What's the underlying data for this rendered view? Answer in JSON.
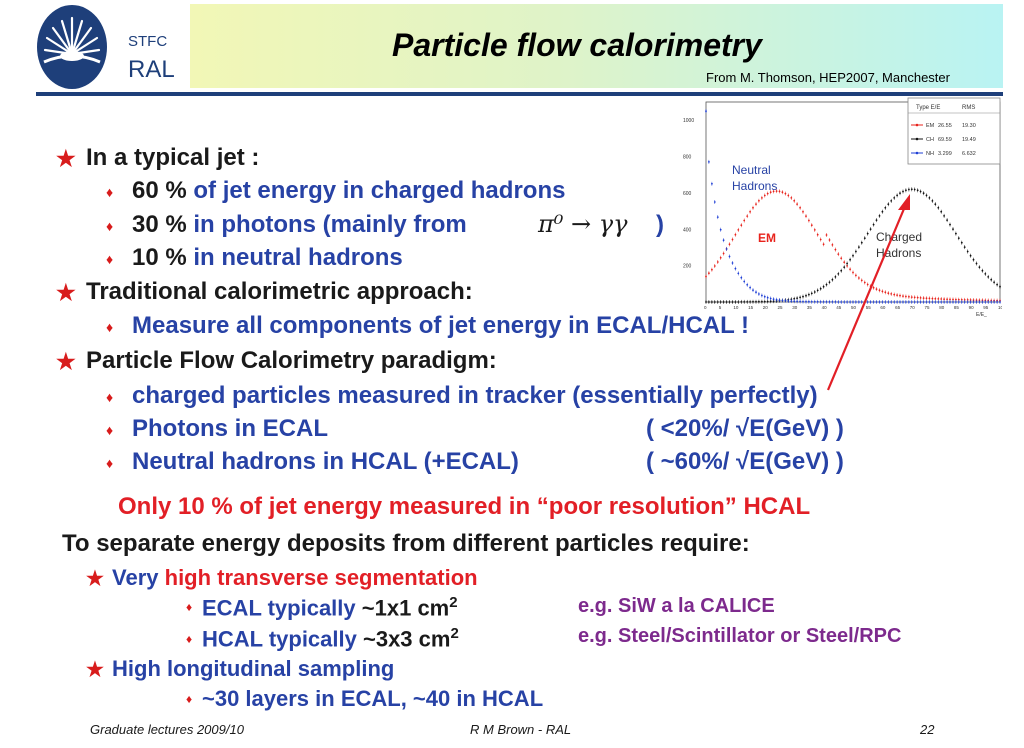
{
  "header": {
    "logo_stfc": "STFC",
    "logo_ral": "RAL",
    "title": "Particle flow calorimetry",
    "source": "From M. Thomson, HEP2007, Manchester"
  },
  "plot": {
    "legend_header_type": "Type E/E",
    "legend_header_rms": "RMS",
    "legend_rows": [
      {
        "type": "EM",
        "mean": "26.55",
        "rms": "19.30"
      },
      {
        "type": "CH",
        "mean": "69.59",
        "rms": "19.49"
      },
      {
        "type": "NH",
        "mean": "3.299",
        "rms": "6.632"
      }
    ],
    "label_neutral_1": "Neutral",
    "label_neutral_2": "Hadrons",
    "label_em": "EM",
    "label_charged_1": "Charged",
    "label_charged_2": "Hadrons",
    "yticks": [
      "1000",
      "800",
      "600",
      "400",
      "200"
    ],
    "xticks": [
      "0",
      "5",
      "10",
      "15",
      "20",
      "25",
      "30",
      "35",
      "40",
      "45",
      "50",
      "55",
      "60",
      "65",
      "70",
      "75",
      "80",
      "85",
      "90",
      "95",
      "100"
    ],
    "xlabel": "E/E_",
    "colors": {
      "em": "#e8231c",
      "ch": "#111111",
      "nh": "#1f3fd6"
    }
  },
  "body": {
    "jet_heading": "In a typical jet :",
    "jet1_pct": "60 %",
    "jet1_text": "of jet energy in charged hadrons",
    "jet2_pct": "30 %",
    "jet2_text": "in photons  (mainly from",
    "jet2_formula": "π⁰ → γγ",
    "jet2_close": ")",
    "jet3_pct": "10 %",
    "jet3_text": "in neutral hadrons",
    "trad_heading": "Traditional calorimetric approach:",
    "trad1": "Measure all components of jet energy in ECAL/HCAL !",
    "pf_heading": "Particle Flow Calorimetry paradigm:",
    "pf1": "charged particles measured in tracker  (essentially perfectly)",
    "pf2_left": "Photons in ECAL",
    "pf2_right": "( <20%/ √E(GeV) )",
    "pf3_left": "Neutral hadrons in HCAL (+ECAL)",
    "pf3_right": "( ~60%/ √E(GeV) )",
    "highlight": "Only 10 % of jet energy measured in “poor resolution” HCAL",
    "separate": "To separate energy deposits from different particles require:",
    "seg_a": "Very",
    "seg_b": "high transverse segmentation",
    "ecal_a": "ECAL typically",
    "ecal_b": "~1x1 cm",
    "ecal_sup": "2",
    "ecal_eg": "e.g. SiW a la CALICE",
    "hcal_a": "HCAL typically",
    "hcal_b": "~3x3 cm",
    "hcal_sup": "2",
    "hcal_eg": "e.g. Steel/Scintillator or Steel/RPC",
    "long_heading": "High longitudinal sampling",
    "layers": "~30 layers in ECAL, ~40 in HCAL"
  },
  "footer": {
    "left": "Graduate lectures 2009/10",
    "center": "R M Brown - RAL",
    "page": "22"
  }
}
